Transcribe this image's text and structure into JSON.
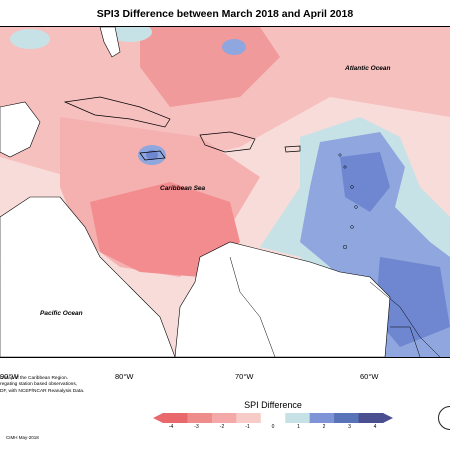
{
  "title": "SPI3 Difference between March 2018 and April 2018",
  "labels": {
    "atlantic": "Atlantic Ocean",
    "caribbean": "Caribbean Sea",
    "pacific": "Pacific Ocean"
  },
  "longitudes": [
    "90°W",
    "80°W",
    "70°W",
    "60°W"
  ],
  "footnote": [
    "n Map of the Caribbean Region.",
    "regating station based observations,",
    "DF, with NCEP/NCAR Reanalysis Data."
  ],
  "credit": "CIMH May-2018",
  "legend": {
    "title": "SPI Difference",
    "ticks": [
      "-4",
      "-3",
      "-2",
      "-1",
      "0",
      "1",
      "2",
      "3",
      "4"
    ],
    "colors": [
      "#e8686c",
      "#ee8b8b",
      "#f3a9a8",
      "#f7cbc8",
      "#ffffff",
      "#c7e2e6",
      "#7f94d6",
      "#5873b8",
      "#4a4f8f"
    ]
  },
  "colors": {
    "land": "#ffffff",
    "dry_strong": "#f28c8e",
    "dry_mid": "#f6aeae",
    "dry_light": "#f9cfcd",
    "neutral": "#fbe8e5",
    "wet_light": "#c7e2e6",
    "wet_mid": "#8fa6de",
    "wet_strong": "#6f87d0"
  }
}
